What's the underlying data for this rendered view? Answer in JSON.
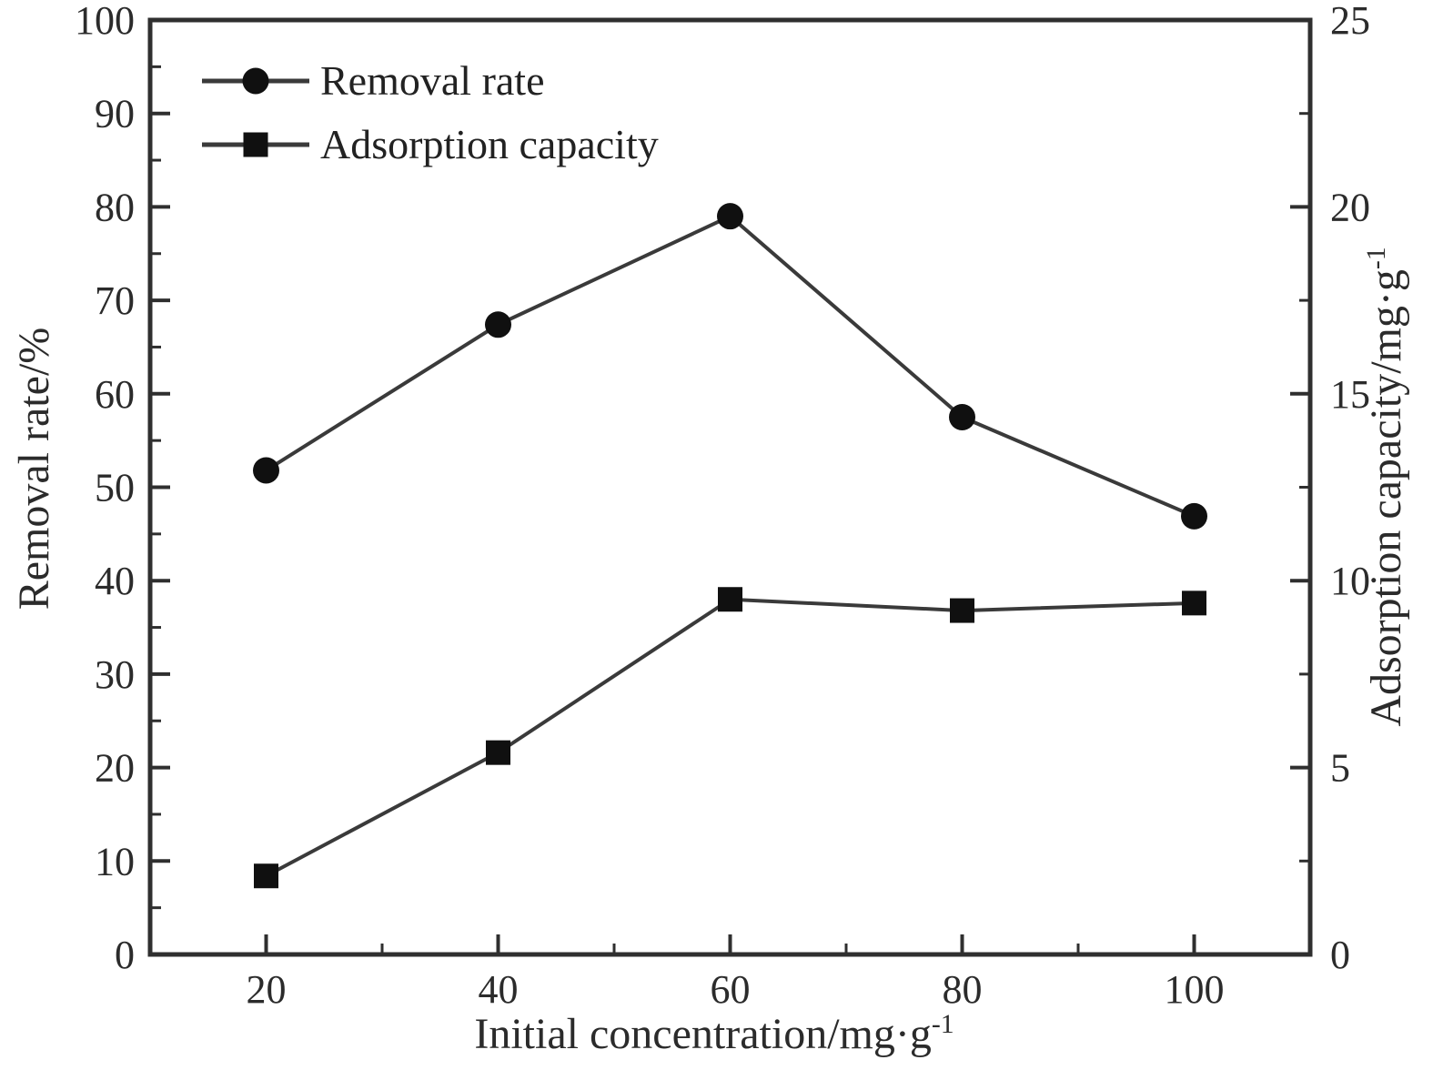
{
  "chart_data": {
    "type": "line",
    "title": "",
    "x": [
      20,
      40,
      60,
      80,
      100
    ],
    "series": [
      {
        "name": "Removal rate",
        "axis": "left",
        "marker": "circle",
        "values": [
          51.8,
          67.4,
          79.0,
          57.5,
          46.9
        ]
      },
      {
        "name": "Adsorption capacity",
        "axis": "right",
        "marker": "square",
        "values": [
          2.1,
          5.4,
          9.5,
          9.2,
          9.4
        ]
      }
    ],
    "x_axis": {
      "label_base": "Initial concentration/mg·g",
      "label_sup": "-1",
      "lim": [
        10,
        110
      ],
      "major_ticks": [
        20,
        40,
        60,
        80,
        100
      ],
      "tick_labels": [
        "20",
        "40",
        "60",
        "80",
        "100"
      ],
      "minor_ticks": [
        30,
        50,
        70,
        90
      ]
    },
    "y_left_axis": {
      "label": "Removal rate/%",
      "lim": [
        0,
        100
      ],
      "major_ticks": [
        0,
        10,
        20,
        30,
        40,
        50,
        60,
        70,
        80,
        90,
        100
      ],
      "tick_labels": [
        "0",
        "10",
        "20",
        "30",
        "40",
        "50",
        "60",
        "70",
        "80",
        "90",
        "100"
      ],
      "minor_ticks": [
        5,
        15,
        25,
        35,
        45,
        55,
        65,
        75,
        85,
        95
      ]
    },
    "y_right_axis": {
      "label_base": "Adsorption capacity/mg·g",
      "label_sup": "-1",
      "lim": [
        0,
        25
      ],
      "major_ticks": [
        0,
        5,
        10,
        15,
        20,
        25
      ],
      "tick_labels": [
        "0",
        "5",
        "10",
        "15",
        "20",
        "25"
      ],
      "minor_ticks": [
        2.5,
        7.5,
        12.5,
        17.5,
        22.5
      ]
    },
    "legend": {
      "position": "top-left",
      "entries": [
        "Removal rate",
        "Adsorption capacity"
      ]
    },
    "grid": false
  },
  "colors": {
    "background": "#ffffff",
    "frame": "#2f2f2f",
    "series_line": "#3a3a3a",
    "marker": "#101010",
    "text": "#2b2b2b"
  }
}
